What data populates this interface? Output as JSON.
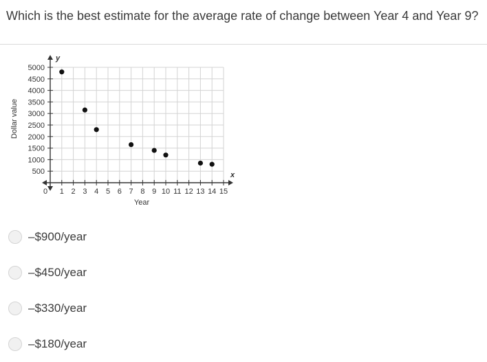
{
  "question": {
    "text": "Which is the best estimate for the average rate of change between Year 4 and Year 9?"
  },
  "chart_data": {
    "type": "scatter",
    "title": "",
    "xlabel": "Year",
    "ylabel": "Dollar value",
    "x_axis_letter": "x",
    "y_axis_letter": "y",
    "origin_label": "0",
    "xlim": [
      0,
      15
    ],
    "ylim": [
      0,
      5000
    ],
    "x_ticks": [
      1,
      2,
      3,
      4,
      5,
      6,
      7,
      8,
      9,
      10,
      11,
      12,
      13,
      14,
      15
    ],
    "y_ticks": [
      500,
      1000,
      1500,
      2000,
      2500,
      3000,
      3500,
      4000,
      4500,
      5000
    ],
    "grid": true,
    "points": [
      {
        "x": 1,
        "y": 4800
      },
      {
        "x": 3,
        "y": 3150
      },
      {
        "x": 4,
        "y": 2300
      },
      {
        "x": 7,
        "y": 1650
      },
      {
        "x": 9,
        "y": 1400
      },
      {
        "x": 10,
        "y": 1200
      },
      {
        "x": 13,
        "y": 850
      },
      {
        "x": 14,
        "y": 800
      }
    ]
  },
  "options": [
    {
      "label": "–$900/year"
    },
    {
      "label": "–$450/year"
    },
    {
      "label": "–$330/year"
    },
    {
      "label": "–$180/year"
    }
  ]
}
